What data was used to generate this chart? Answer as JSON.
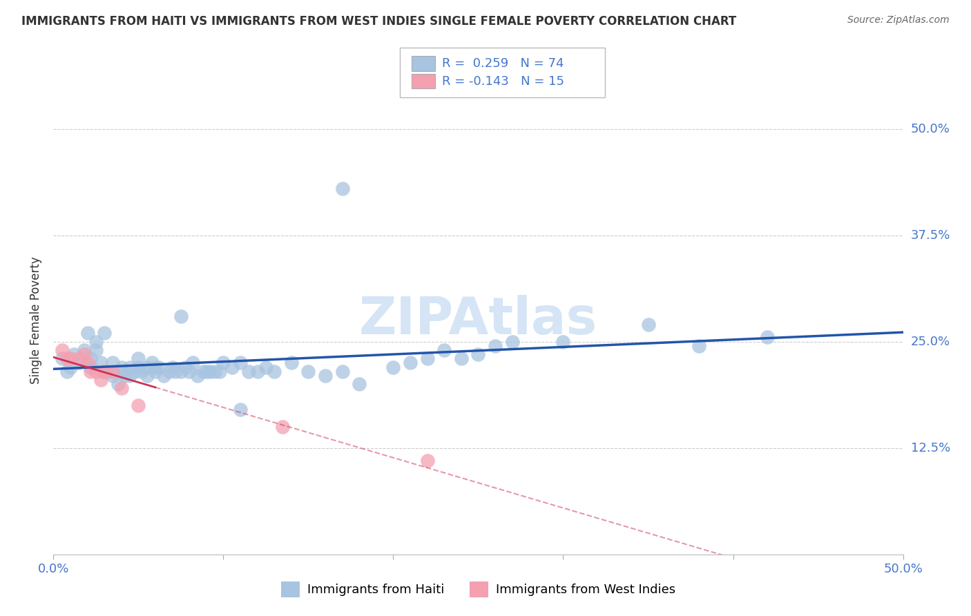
{
  "title": "IMMIGRANTS FROM HAITI VS IMMIGRANTS FROM WEST INDIES SINGLE FEMALE POVERTY CORRELATION CHART",
  "source": "Source: ZipAtlas.com",
  "ylabel": "Single Female Poverty",
  "xlim": [
    0.0,
    0.5
  ],
  "ylim": [
    0.0,
    0.55
  ],
  "haiti_color": "#a8c4e0",
  "west_indies_color": "#f4a0b0",
  "haiti_R": 0.259,
  "haiti_N": 74,
  "west_indies_R": -0.143,
  "west_indies_N": 15,
  "haiti_line_color": "#2255aa",
  "west_indies_line_solid_color": "#cc3355",
  "west_indies_line_dash_color": "#e8a0b0",
  "legend_label_haiti": "Immigrants from Haiti",
  "legend_label_west_indies": "Immigrants from West Indies",
  "background_color": "#ffffff",
  "watermark_color": "#d5e5f5",
  "haiti_x": [
    0.005,
    0.008,
    0.01,
    0.012,
    0.015,
    0.018,
    0.02,
    0.022,
    0.022,
    0.025,
    0.025,
    0.028,
    0.03,
    0.03,
    0.032,
    0.035,
    0.035,
    0.038,
    0.04,
    0.04,
    0.042,
    0.045,
    0.045,
    0.048,
    0.05,
    0.05,
    0.052,
    0.055,
    0.055,
    0.058,
    0.06,
    0.06,
    0.062,
    0.065,
    0.068,
    0.07,
    0.072,
    0.075,
    0.075,
    0.078,
    0.08,
    0.082,
    0.085,
    0.088,
    0.09,
    0.092,
    0.095,
    0.098,
    0.1,
    0.105,
    0.11,
    0.115,
    0.12,
    0.125,
    0.13,
    0.14,
    0.15,
    0.16,
    0.17,
    0.18,
    0.2,
    0.21,
    0.22,
    0.23,
    0.24,
    0.25,
    0.26,
    0.27,
    0.3,
    0.35,
    0.38,
    0.42,
    0.17,
    0.11
  ],
  "haiti_y": [
    0.23,
    0.215,
    0.22,
    0.235,
    0.225,
    0.24,
    0.26,
    0.23,
    0.22,
    0.25,
    0.24,
    0.225,
    0.26,
    0.215,
    0.215,
    0.225,
    0.21,
    0.2,
    0.22,
    0.215,
    0.21,
    0.22,
    0.21,
    0.215,
    0.23,
    0.22,
    0.215,
    0.22,
    0.21,
    0.225,
    0.22,
    0.215,
    0.22,
    0.21,
    0.215,
    0.22,
    0.215,
    0.28,
    0.215,
    0.22,
    0.215,
    0.225,
    0.21,
    0.215,
    0.215,
    0.215,
    0.215,
    0.215,
    0.225,
    0.22,
    0.225,
    0.215,
    0.215,
    0.22,
    0.215,
    0.225,
    0.215,
    0.21,
    0.215,
    0.2,
    0.22,
    0.225,
    0.23,
    0.24,
    0.23,
    0.235,
    0.245,
    0.25,
    0.25,
    0.27,
    0.245,
    0.255,
    0.43,
    0.17
  ],
  "wi_x": [
    0.005,
    0.008,
    0.01,
    0.015,
    0.018,
    0.02,
    0.022,
    0.025,
    0.028,
    0.03,
    0.035,
    0.04,
    0.05,
    0.135,
    0.22
  ],
  "wi_y": [
    0.24,
    0.23,
    0.23,
    0.23,
    0.235,
    0.225,
    0.215,
    0.215,
    0.205,
    0.215,
    0.215,
    0.195,
    0.175,
    0.15,
    0.11
  ]
}
